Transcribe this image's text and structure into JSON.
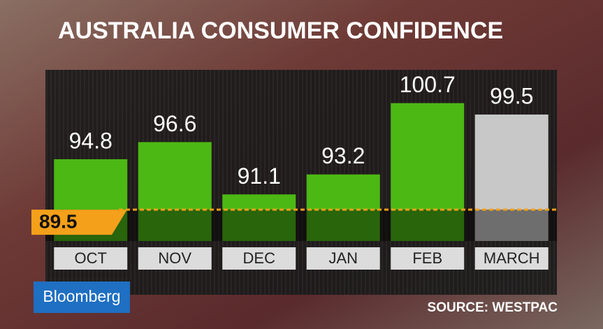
{
  "chart_data": {
    "type": "bar",
    "title": "AUSTRALIA CONSUMER CONFIDENCE",
    "categories": [
      "OCT",
      "NOV",
      "DEC",
      "JAN",
      "FEB",
      "MARCH"
    ],
    "values": [
      94.8,
      96.6,
      91.1,
      93.2,
      100.7,
      99.5
    ],
    "colors": [
      "#4cb814",
      "#4cb814",
      "#4cb814",
      "#4cb814",
      "#4cb814",
      "#c8c8c8"
    ],
    "ylim": [
      86.2,
      104.2
    ],
    "reference_value": 89.5,
    "reference_color": "#f5a01a",
    "source": "SOURCE: WESTPAC",
    "brand": "Bloomberg"
  }
}
